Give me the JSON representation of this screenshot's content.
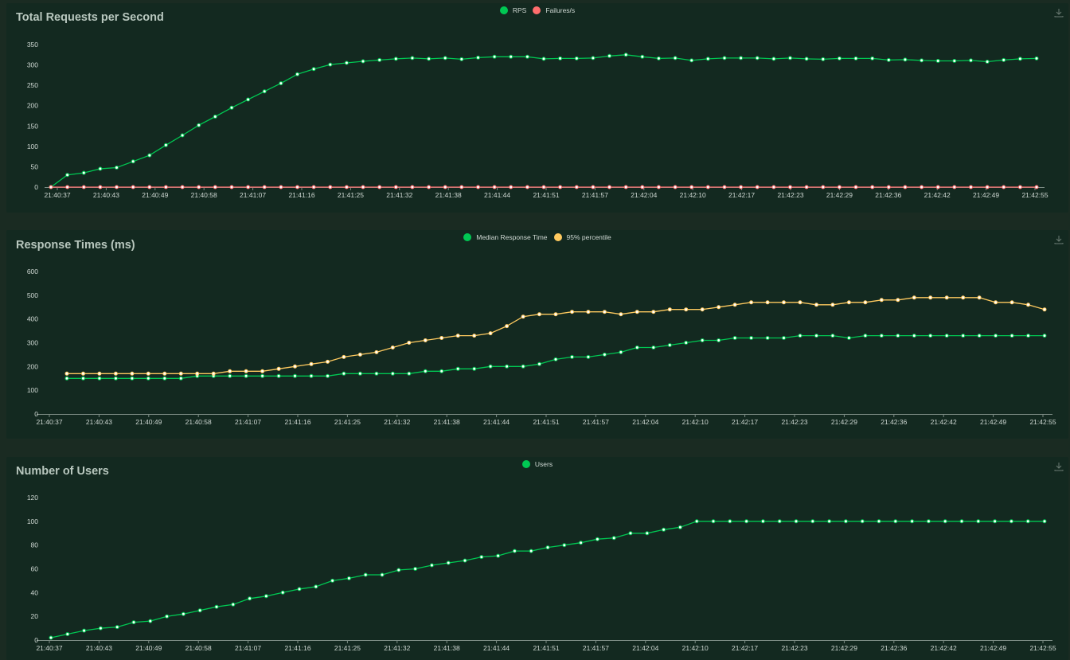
{
  "colors": {
    "page_bg": "#1a2b22",
    "panel_bg": "#132920",
    "axis": "#7c8c84",
    "text": "#cfd8d3",
    "green": "#00c853",
    "red": "#ff6d6d",
    "yellow": "#ffca5f"
  },
  "icons": {
    "download": "download-icon"
  },
  "chart_data": [
    {
      "type": "line",
      "title": "Total Requests per Second",
      "x_labels": [
        "21:40:37",
        "21:40:43",
        "21:40:49",
        "21:40:58",
        "21:41:07",
        "21:41:16",
        "21:41:25",
        "21:41:32",
        "21:41:38",
        "21:41:44",
        "21:41:51",
        "21:41:57",
        "21:42:04",
        "21:42:10",
        "21:42:17",
        "21:42:23",
        "21:42:29",
        "21:42:36",
        "21:42:42",
        "21:42:49",
        "21:42:55"
      ],
      "ylim": [
        0,
        350
      ],
      "yticks": [
        0,
        50,
        100,
        150,
        200,
        250,
        300,
        350
      ],
      "series": [
        {
          "name": "RPS",
          "color": "#00c853",
          "values": [
            0,
            30,
            35,
            45,
            48,
            63,
            78,
            103,
            127,
            152,
            173,
            195,
            215,
            235,
            255,
            277,
            290,
            301,
            305,
            309,
            312,
            315,
            317,
            315,
            317,
            314,
            318,
            320,
            320,
            320,
            315,
            316,
            316,
            317,
            322,
            325,
            320,
            316,
            317,
            311,
            315,
            317,
            317,
            317,
            315,
            317,
            315,
            314,
            316,
            316,
            316,
            312,
            313,
            311,
            310,
            310,
            311,
            308,
            312,
            315,
            316
          ]
        },
        {
          "name": "Failures/s",
          "color": "#ff6d6d",
          "values": [
            0,
            0,
            0,
            0,
            0,
            0,
            0,
            0,
            0,
            0,
            0,
            0,
            0,
            0,
            0,
            0,
            0,
            0,
            0,
            0,
            0,
            0,
            0,
            0,
            0,
            0,
            0,
            0,
            0,
            0,
            0,
            0,
            0,
            0,
            0,
            0,
            0,
            0,
            0,
            0,
            0,
            0,
            0,
            0,
            0,
            0,
            0,
            0,
            0,
            0,
            0,
            0,
            0,
            0,
            0,
            0,
            0,
            0,
            0,
            0,
            0
          ]
        }
      ]
    },
    {
      "type": "line",
      "title": "Response Times (ms)",
      "x_labels": [
        "21:40:37",
        "21:40:43",
        "21:40:49",
        "21:40:58",
        "21:41:07",
        "21:41:16",
        "21:41:25",
        "21:41:32",
        "21:41:38",
        "21:41:44",
        "21:41:51",
        "21:41:57",
        "21:42:04",
        "21:42:10",
        "21:42:17",
        "21:42:23",
        "21:42:29",
        "21:42:36",
        "21:42:42",
        "21:42:49",
        "21:42:55"
      ],
      "ylim": [
        0,
        600
      ],
      "yticks": [
        0,
        100,
        200,
        300,
        400,
        500,
        600
      ],
      "series": [
        {
          "name": "Median Response Time",
          "color": "#00c853",
          "values": [
            150,
            150,
            150,
            150,
            150,
            150,
            150,
            150,
            160,
            160,
            160,
            160,
            160,
            160,
            160,
            160,
            160,
            170,
            170,
            170,
            170,
            170,
            180,
            180,
            190,
            190,
            200,
            200,
            200,
            210,
            230,
            240,
            240,
            250,
            260,
            280,
            280,
            290,
            300,
            310,
            310,
            320,
            320,
            320,
            320,
            330,
            330,
            330,
            320,
            330,
            330,
            330,
            330,
            330,
            330,
            330,
            330,
            330,
            330,
            330,
            330
          ]
        },
        {
          "name": "95% percentile",
          "color": "#ffca5f",
          "values": [
            170,
            170,
            170,
            170,
            170,
            170,
            170,
            170,
            170,
            170,
            180,
            180,
            180,
            190,
            200,
            210,
            220,
            240,
            250,
            260,
            280,
            300,
            310,
            320,
            330,
            330,
            340,
            370,
            410,
            420,
            420,
            430,
            430,
            430,
            420,
            430,
            430,
            440,
            440,
            440,
            450,
            460,
            470,
            470,
            470,
            470,
            460,
            460,
            470,
            470,
            480,
            480,
            490,
            490,
            490,
            490,
            490,
            470,
            470,
            460,
            440
          ]
        }
      ]
    },
    {
      "type": "line",
      "title": "Number of Users",
      "x_labels": [
        "21:40:37",
        "21:40:43",
        "21:40:49",
        "21:40:58",
        "21:41:07",
        "21:41:16",
        "21:41:25",
        "21:41:32",
        "21:41:38",
        "21:41:44",
        "21:41:51",
        "21:41:57",
        "21:42:04",
        "21:42:10",
        "21:42:17",
        "21:42:23",
        "21:42:29",
        "21:42:36",
        "21:42:42",
        "21:42:49",
        "21:42:55"
      ],
      "ylim": [
        0,
        120
      ],
      "yticks": [
        0,
        20,
        40,
        60,
        80,
        100,
        120
      ],
      "series": [
        {
          "name": "Users",
          "color": "#00c853",
          "values": [
            2,
            5,
            8,
            10,
            11,
            15,
            16,
            20,
            22,
            25,
            28,
            30,
            35,
            37,
            40,
            43,
            45,
            50,
            52,
            55,
            55,
            59,
            60,
            63,
            65,
            67,
            70,
            71,
            75,
            75,
            78,
            80,
            82,
            85,
            86,
            90,
            90,
            93,
            95,
            100,
            100,
            100,
            100,
            100,
            100,
            100,
            100,
            100,
            100,
            100,
            100,
            100,
            100,
            100,
            100,
            100,
            100,
            100,
            100,
            100,
            100
          ]
        }
      ]
    }
  ]
}
